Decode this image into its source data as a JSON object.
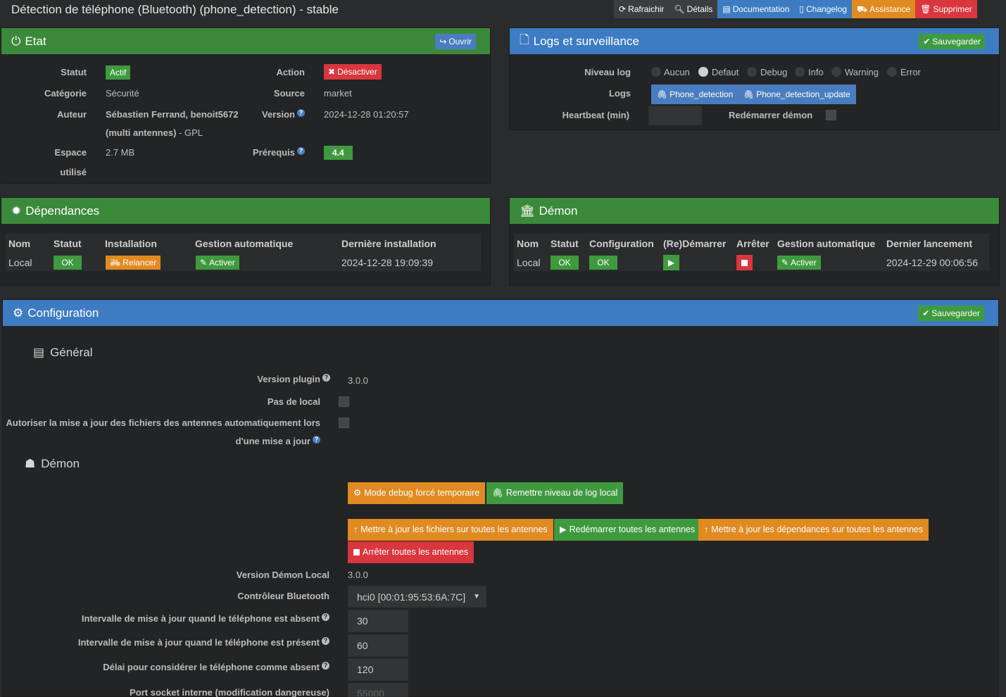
{
  "header": {
    "title": "Détection de téléphone (Bluetooth) (phone_detection) - stable",
    "buttons": {
      "refresh": "Rafraichir",
      "details": "Détails",
      "documentation": "Documentation",
      "changelog": "Changelog",
      "assistance": "Assistance",
      "delete": "Supprimer"
    }
  },
  "etat": {
    "title": "Etat",
    "open_button": "Ouvrir",
    "statut_label": "Statut",
    "statut_value": "Actif",
    "action_label": "Action",
    "action_button": "Désactiver",
    "categorie_label": "Catégorie",
    "categorie_value": "Sécurité",
    "source_label": "Source",
    "source_value": "market",
    "auteur_label": "Auteur",
    "auteur_value_line1": "Sébastien Ferrand, benoit5672",
    "auteur_value_line2": "(multi antennes)",
    "license": " - GPL",
    "version_label": "Version",
    "version_value": "2024-12-28 01:20:57",
    "espace_label_line1": "Espace",
    "espace_label_line2": "utilisé",
    "espace_value": "2.7 MB",
    "prerequis_label": "Prérequis",
    "prerequis_value": "4.4"
  },
  "logs": {
    "title": "Logs et surveillance",
    "save_button": "Sauvegarder",
    "niveau_label": "Niveau log",
    "levels": [
      "Aucun",
      "Defaut",
      "Debug",
      "Info",
      "Warning",
      "Error"
    ],
    "selected_level": "Defaut",
    "logs_label": "Logs",
    "log_buttons": [
      "Phone_detection",
      "Phone_detection_update"
    ],
    "heartbeat_label": "Heartbeat (min)",
    "heartbeat_value": "",
    "restart_label": "Redémarrer démon"
  },
  "dependances": {
    "title": "Dépendances",
    "headers": [
      "Nom",
      "Statut",
      "Installation",
      "Gestion automatique",
      "Dernière installation"
    ],
    "row": {
      "nom": "Local",
      "statut": "OK",
      "installation": "Relancer",
      "gestion": "Activer",
      "derniere": "2024-12-28 19:09:39"
    }
  },
  "demon": {
    "title": "Démon",
    "headers": [
      "Nom",
      "Statut",
      "Configuration",
      "(Re)Démarrer",
      "Arrêter",
      "Gestion automatique",
      "Dernier lancement"
    ],
    "row": {
      "nom": "Local",
      "statut": "OK",
      "configuration": "OK",
      "gestion": "Activer",
      "dernier": "2024-12-29 00:06:56"
    }
  },
  "configuration": {
    "title": "Configuration",
    "save_button": "Sauvegarder",
    "general_title": "Général",
    "version_plugin_label": "Version plugin",
    "version_plugin_value": "3.0.0",
    "pas_local_label": "Pas de local",
    "autoriser_label_line1": "Autoriser la mise a jour des fichiers des antennes automatiquement lors",
    "autoriser_label_line2": "d'une mise a jour",
    "demon_title": "Démon",
    "buttons": {
      "debug_mode": "Mode debug forcé temporaire",
      "reset_log": "Remettre niveau de log local",
      "update_files": "Mettre à jour les fichiers sur toutes les antennes",
      "restart_all": "Redémarrer toutes les antennes",
      "update_deps": "Mettre à jour les dépendances sur toutes les antennes",
      "stop_all": "Arrêter toutes les antennes"
    },
    "version_demon_label": "Version Démon Local",
    "version_demon_value": "3.0.0",
    "controleur_label": "Contrôleur Bluetooth",
    "controleur_value": "hci0 [00:01:95:53:6A:7C]",
    "absent_interval_label": "Intervalle de mise à jour quand le téléphone est absent",
    "absent_interval_value": "30",
    "present_interval_label": "Intervalle de mise à jour quand le téléphone est présent",
    "present_interval_value": "60",
    "delai_label": "Délai pour considérer le téléphone comme absent",
    "delai_value": "120",
    "port_label": "Port socket interne (modification dangereuse)",
    "port_value": "55000"
  }
}
